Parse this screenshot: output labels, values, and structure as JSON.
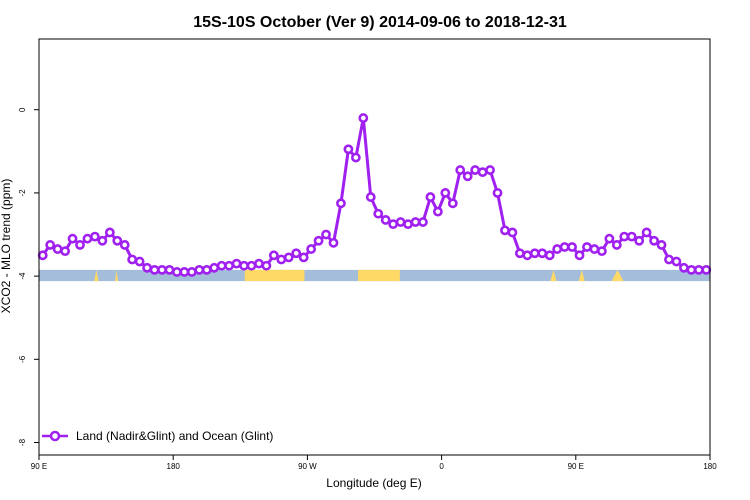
{
  "chart_data": {
    "type": "line",
    "title": "15S-10S October (Ver 9)   2014-09-06 to 2018-12-31",
    "xlabel": "Longitude (deg E)",
    "ylabel": "XCO2 - MLO trend (ppm)",
    "x_unwrapped_range": [
      90,
      450
    ],
    "xticks": [
      {
        "value": 90,
        "label": "90 E"
      },
      {
        "value": 180,
        "label": "180"
      },
      {
        "value": 270,
        "label": "90 W"
      },
      {
        "value": 360,
        "label": "0"
      },
      {
        "value": 450,
        "label": "90 E"
      },
      {
        "value": 540,
        "label": "180"
      }
    ],
    "xlim": [
      90,
      540
    ],
    "ylim": [
      -8.3,
      1.7
    ],
    "yticks": [
      0,
      -2,
      -4,
      -6,
      -8
    ],
    "grid": false,
    "legend_position": "bottom-left",
    "colors": {
      "series": "#a020f0",
      "ocean": "#a3bddb",
      "land": "#ffd966"
    },
    "series": [
      {
        "name": "Land (Nadir&Glint) and Ocean (Glint)",
        "x": [
          92.5,
          97.5,
          102.5,
          107.5,
          112.5,
          117.5,
          122.5,
          127.5,
          132.5,
          137.5,
          142.5,
          147.5,
          152.5,
          157.5,
          162.5,
          167.5,
          172.5,
          177.5,
          182.5,
          187.5,
          192.5,
          197.5,
          202.5,
          207.5,
          212.5,
          217.5,
          222.5,
          227.5,
          232.5,
          237.5,
          242.5,
          247.5,
          252.5,
          257.5,
          262.5,
          267.5,
          272.5,
          277.5,
          282.5,
          287.5,
          292.5,
          297.5,
          302.5,
          307.5,
          312.5,
          317.5,
          322.5,
          327.5,
          332.5,
          337.5,
          342.5,
          347.5,
          352.5,
          357.5,
          362.5,
          367.5,
          372.5,
          377.5,
          382.5,
          387.5,
          392.5,
          397.5,
          402.5,
          407.5,
          412.5,
          417.5,
          422.5,
          427.5,
          432.5,
          437.5,
          442.5,
          447.5,
          452.5,
          457.5,
          462.5,
          467.5,
          472.5,
          477.5,
          482.5,
          487.5,
          492.5,
          497.5,
          502.5,
          507.5,
          512.5,
          517.5,
          522.5,
          527.5,
          532.5,
          537.5
        ],
        "y": [
          -3.5,
          -3.25,
          -3.35,
          -3.4,
          -3.1,
          -3.25,
          -3.1,
          -3.05,
          -3.15,
          -2.95,
          -3.15,
          -3.25,
          -3.6,
          -3.65,
          -3.8,
          -3.85,
          -3.85,
          -3.85,
          -3.9,
          -3.9,
          -3.9,
          -3.85,
          -3.85,
          -3.8,
          -3.75,
          -3.75,
          -3.7,
          -3.75,
          -3.75,
          -3.7,
          -3.75,
          -3.5,
          -3.6,
          -3.55,
          -3.45,
          -3.55,
          -3.35,
          -3.15,
          -3.0,
          -3.2,
          -2.25,
          -0.95,
          -1.15,
          -0.2,
          -2.1,
          -2.5,
          -2.65,
          -2.75,
          -2.7,
          -2.75,
          -2.7,
          -2.7,
          -2.1,
          -2.45,
          -2.0,
          -2.25,
          -1.45,
          -1.6,
          -1.45,
          -1.5,
          -1.45,
          -2.0,
          -2.9,
          -2.95,
          -3.45,
          -3.5,
          -3.45,
          -3.45,
          -3.5,
          -3.35,
          -3.3,
          -3.3,
          -3.5,
          -3.3,
          -3.35,
          -3.4,
          -3.1,
          -3.25,
          -3.05,
          -3.05,
          -3.15,
          -2.95,
          -3.15,
          -3.25,
          -3.6,
          -3.65,
          -3.8,
          -3.85,
          -3.85,
          -3.85
        ]
      }
    ],
    "surface_band": {
      "y_range": [
        -4.12,
        -3.85
      ],
      "land_spans": [
        [
          228,
          268
        ],
        [
          304,
          332
        ]
      ],
      "land_bumps": [
        [
          127,
          130
        ],
        [
          141,
          143
        ],
        [
          433,
          437
        ],
        [
          452,
          456
        ],
        [
          474,
          482
        ]
      ]
    }
  }
}
